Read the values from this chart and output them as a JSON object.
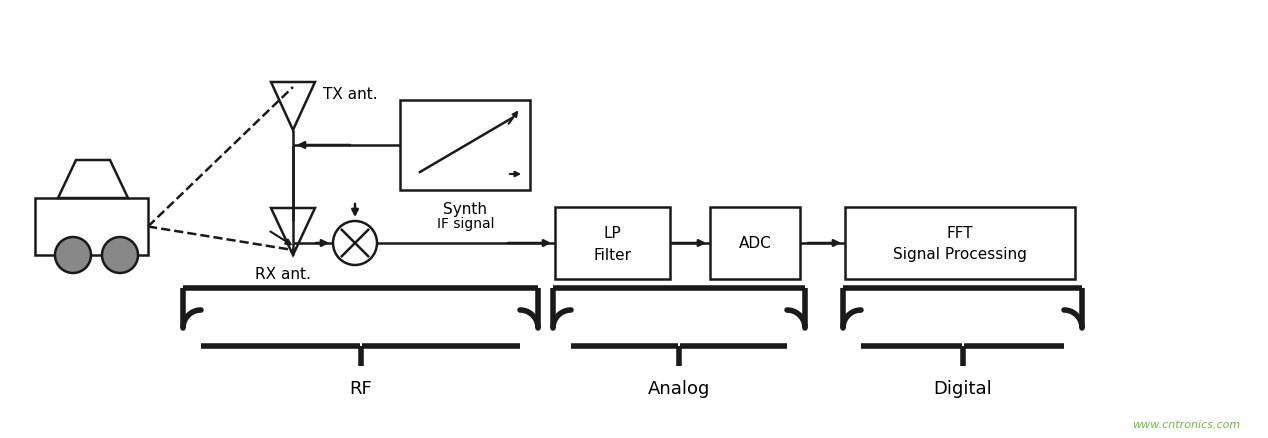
{
  "bg_color": "#ffffff",
  "line_color": "#1a1a1a",
  "gray_color": "#888888",
  "text_color": "#000000",
  "watermark_color": "#7ab648",
  "watermark": "www.cntronics.com",
  "labels": {
    "tx_ant": "TX ant.",
    "rx_ant": "RX ant.",
    "synth": "Synth",
    "lp_filter_line1": "LP",
    "lp_filter_line2": "Filter",
    "adc": "ADC",
    "fft_line1": "FFT",
    "fft_line2": "Signal Processing",
    "if_signal": "IF signal",
    "rf": "RF",
    "analog": "Analog",
    "digital": "Digital"
  },
  "figsize": [
    12.68,
    4.38
  ],
  "dpi": 100
}
